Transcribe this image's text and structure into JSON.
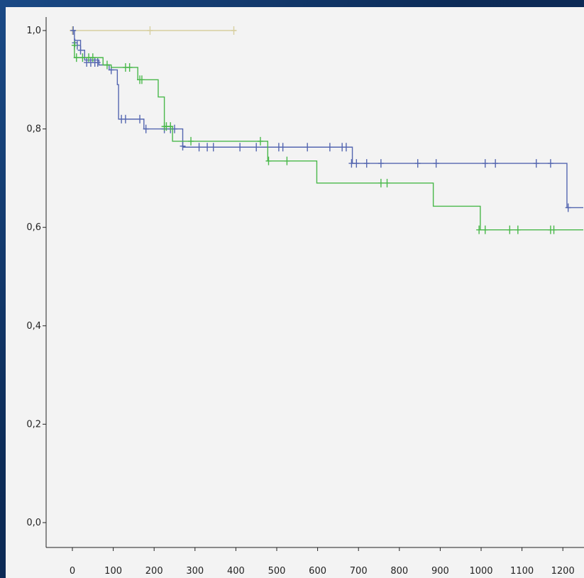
{
  "chart_data": {
    "type": "line",
    "title": "",
    "xlabel": "",
    "ylabel": "",
    "xlim": [
      0,
      1250
    ],
    "ylim": [
      0,
      1.0
    ],
    "x_ticks": [
      "0",
      "100",
      "200",
      "300",
      "400",
      "500",
      "600",
      "700",
      "800",
      "900",
      "1000",
      "1100",
      "1200"
    ],
    "y_ticks": [
      "0,0",
      "0,2",
      "0,4",
      "0,6",
      "0,8",
      "1,0"
    ],
    "grid": false,
    "series": [
      {
        "color": "#d8cfa0",
        "steps": [
          [
            0,
            1.0
          ],
          [
            400,
            1.0
          ]
        ],
        "censors": [
          [
            0,
            1.0
          ],
          [
            190,
            1.0
          ],
          [
            395,
            1.0
          ]
        ]
      },
      {
        "color": "#5466b0",
        "steps": [
          [
            0,
            1.0
          ],
          [
            5,
            0.98
          ],
          [
            20,
            0.96
          ],
          [
            30,
            0.94
          ],
          [
            65,
            0.93
          ],
          [
            90,
            0.92
          ],
          [
            110,
            0.89
          ],
          [
            113,
            0.82
          ],
          [
            165,
            0.82
          ],
          [
            175,
            0.8
          ],
          [
            245,
            0.8
          ],
          [
            270,
            0.763
          ],
          [
            680,
            0.763
          ],
          [
            685,
            0.73
          ],
          [
            1205,
            0.73
          ],
          [
            1210,
            0.64
          ],
          [
            1250,
            0.64
          ]
        ],
        "censors": [
          [
            2,
            1.0
          ],
          [
            6,
            0.975
          ],
          [
            12,
            0.97
          ],
          [
            20,
            0.96
          ],
          [
            35,
            0.935
          ],
          [
            45,
            0.935
          ],
          [
            55,
            0.935
          ],
          [
            62,
            0.935
          ],
          [
            95,
            0.92
          ],
          [
            120,
            0.82
          ],
          [
            130,
            0.82
          ],
          [
            165,
            0.82
          ],
          [
            180,
            0.8
          ],
          [
            225,
            0.8
          ],
          [
            240,
            0.8
          ],
          [
            250,
            0.8
          ],
          [
            270,
            0.765
          ],
          [
            310,
            0.763
          ],
          [
            330,
            0.763
          ],
          [
            345,
            0.763
          ],
          [
            410,
            0.763
          ],
          [
            450,
            0.763
          ],
          [
            505,
            0.763
          ],
          [
            515,
            0.763
          ],
          [
            575,
            0.763
          ],
          [
            630,
            0.763
          ],
          [
            660,
            0.763
          ],
          [
            670,
            0.763
          ],
          [
            683,
            0.73
          ],
          [
            695,
            0.73
          ],
          [
            720,
            0.73
          ],
          [
            755,
            0.73
          ],
          [
            845,
            0.73
          ],
          [
            890,
            0.73
          ],
          [
            1010,
            0.73
          ],
          [
            1035,
            0.73
          ],
          [
            1135,
            0.73
          ],
          [
            1170,
            0.73
          ],
          [
            1213,
            0.64
          ]
        ]
      },
      {
        "color": "#49b84a",
        "steps": [
          [
            0,
            0.97
          ],
          [
            5,
            0.945
          ],
          [
            75,
            0.93
          ],
          [
            95,
            0.925
          ],
          [
            160,
            0.9
          ],
          [
            210,
            0.865
          ],
          [
            225,
            0.805
          ],
          [
            245,
            0.775
          ],
          [
            475,
            0.775
          ],
          [
            478,
            0.735
          ],
          [
            595,
            0.735
          ],
          [
            598,
            0.69
          ],
          [
            880,
            0.69
          ],
          [
            883,
            0.643
          ],
          [
            995,
            0.643
          ],
          [
            998,
            0.595
          ],
          [
            1250,
            0.595
          ]
        ],
        "censors": [
          [
            5,
            0.97
          ],
          [
            10,
            0.945
          ],
          [
            25,
            0.945
          ],
          [
            40,
            0.945
          ],
          [
            50,
            0.945
          ],
          [
            85,
            0.93
          ],
          [
            130,
            0.925
          ],
          [
            140,
            0.925
          ],
          [
            165,
            0.9
          ],
          [
            170,
            0.9
          ],
          [
            225,
            0.805
          ],
          [
            230,
            0.805
          ],
          [
            240,
            0.805
          ],
          [
            290,
            0.775
          ],
          [
            460,
            0.775
          ],
          [
            480,
            0.735
          ],
          [
            525,
            0.735
          ],
          [
            755,
            0.69
          ],
          [
            770,
            0.69
          ],
          [
            995,
            0.595
          ],
          [
            1010,
            0.595
          ],
          [
            1070,
            0.595
          ],
          [
            1090,
            0.595
          ],
          [
            1170,
            0.595
          ],
          [
            1178,
            0.595
          ]
        ]
      }
    ]
  }
}
